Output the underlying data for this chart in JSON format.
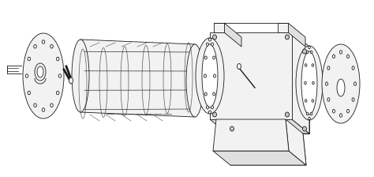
{
  "background_color": "#ffffff",
  "line_color": "#1a1a1a",
  "fill_light": "#f2f2f2",
  "fill_mid": "#e0e0e0",
  "fill_dark": "#c8c8c8",
  "figsize": [
    4.74,
    2.24
  ],
  "dpi": 100
}
